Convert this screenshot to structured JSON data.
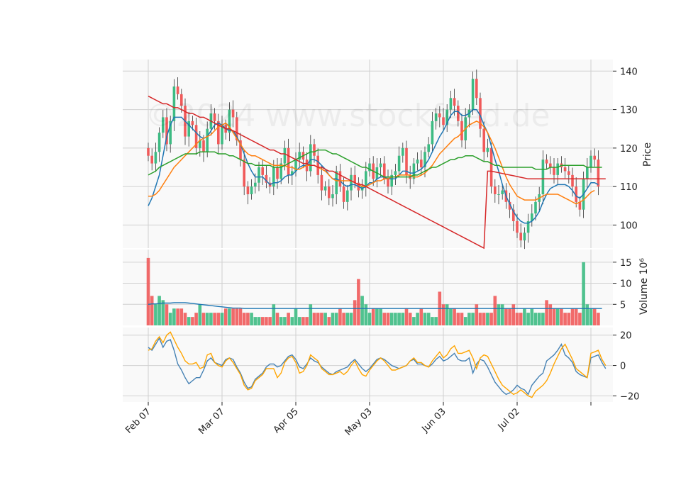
{
  "watermark": "©2024 www.stockfeed.de",
  "colors": {
    "up": "#3dbb83",
    "down": "#f05a5a",
    "ma_fast": "#1f77b4",
    "ma_mid": "#ff7f0e",
    "ma_slow": "#2ca02c",
    "ma_long": "#d62728",
    "volume_ma": "#1f77b4",
    "osc_fast": "#4682b4",
    "osc_slow": "#ffa500",
    "panel_bg": "#f9f9f9",
    "grid": "#d0d0d0"
  },
  "chart_data": [
    {
      "type": "candlestick",
      "ylabel": "Price",
      "ylim": [
        94,
        143
      ],
      "yticks": [
        100,
        110,
        120,
        130,
        140
      ],
      "x_ticks": [
        {
          "index": 0,
          "label": "Feb 07"
        },
        {
          "index": 20,
          "label": "Mar 07"
        },
        {
          "index": 40,
          "label": "Apr 05"
        },
        {
          "index": 60,
          "label": "May 03"
        },
        {
          "index": 80,
          "label": "Jun 03"
        },
        {
          "index": 100,
          "label": "Jul 02"
        },
        {
          "index": 120,
          "label": ""
        }
      ],
      "close": [
        118,
        116,
        119,
        124,
        128,
        121,
        127,
        136,
        134,
        131,
        123,
        127,
        126,
        120,
        122,
        119,
        125,
        129,
        127,
        121,
        126,
        124,
        130,
        128,
        122,
        117,
        110,
        108,
        110,
        111,
        115,
        113,
        111,
        110,
        115,
        112,
        116,
        120,
        113,
        114,
        117,
        119,
        117,
        114,
        121,
        118,
        113,
        109,
        110,
        107,
        108,
        114,
        110,
        106,
        109,
        113,
        111,
        109,
        110,
        114,
        116,
        112,
        115,
        116,
        112,
        110,
        113,
        114,
        118,
        120,
        113,
        112,
        116,
        117,
        115,
        119,
        121,
        127,
        129,
        128,
        126,
        130,
        133,
        131,
        127,
        122,
        128,
        130,
        138,
        133,
        125,
        119,
        120,
        110,
        108,
        108,
        109,
        106,
        104,
        101,
        98,
        96,
        98,
        101,
        103,
        106,
        108,
        117,
        116,
        115,
        113,
        116,
        115,
        114,
        113,
        110,
        106,
        104,
        112,
        115,
        118,
        117,
        110
      ],
      "series": [
        {
          "name": "",
          "values": [
            105,
            107,
            110,
            113,
            118,
            123,
            126,
            128,
            128,
            128,
            127,
            126,
            125,
            124,
            123,
            122.5,
            123,
            124.5,
            126,
            126.5,
            126,
            125,
            124.5,
            124.5,
            123,
            121,
            118.5,
            116,
            114,
            112.5,
            112.5,
            112.5,
            111.5,
            110.5,
            111,
            111,
            111.5,
            112.5,
            113,
            113,
            114,
            115,
            115.5,
            115.5,
            117,
            117,
            116.5,
            115.5,
            114.5,
            113,
            112,
            112,
            111.5,
            110.5,
            110,
            110.5,
            110.5,
            110,
            109.5,
            110,
            111,
            111,
            112,
            112.5,
            112.5,
            112,
            112,
            112,
            113,
            114,
            114,
            113.5,
            113.5,
            114,
            114.5,
            115.5,
            117,
            119,
            121,
            123,
            124.5,
            126.5,
            128.5,
            129.5,
            129.5,
            128.5,
            128.5,
            129,
            130,
            130,
            128.5,
            126,
            124,
            120.5,
            117,
            114,
            110.5,
            107.5,
            105.5,
            103.5,
            102,
            101,
            100.5,
            100.5,
            101,
            102,
            103.5,
            106,
            108,
            109.5,
            110,
            110.5,
            110.5,
            110.5,
            110,
            109,
            107.5,
            107,
            108,
            109.5,
            111,
            111,
            110.5
          ]
        },
        {
          "name": "",
          "values": [
            107.5,
            107.5,
            108,
            109,
            110.5,
            112,
            113.5,
            115,
            116,
            117,
            118,
            119,
            120,
            121,
            122,
            122.5,
            123,
            123.5,
            124.5,
            125.5,
            126,
            126.5,
            125.5,
            124,
            122.5,
            121,
            119.5,
            118.5,
            118,
            118,
            117.5,
            117,
            116.5,
            116,
            115.5,
            115.5,
            115.5,
            115.5,
            115,
            115,
            114.5,
            114.5,
            115,
            115.5,
            115.5,
            115.5,
            115,
            114.5,
            114,
            113,
            112,
            111.5,
            111.5,
            111.5,
            111.5,
            111.5,
            111,
            110.5,
            110,
            110,
            110.5,
            111,
            111.5,
            111.5,
            112,
            112,
            112.5,
            112.5,
            113,
            113,
            113,
            113,
            112.5,
            112.5,
            113,
            113.5,
            114.5,
            115.5,
            117,
            118.5,
            119.5,
            120.5,
            121.5,
            122.5,
            123,
            124,
            125,
            126,
            126.5,
            127,
            126.5,
            125.5,
            124,
            122,
            120,
            117.5,
            115,
            112.5,
            110.5,
            109,
            107.5,
            107,
            106.5,
            106.5,
            106.5,
            106.5,
            107,
            107.5,
            108,
            108,
            108,
            108,
            107.5,
            107,
            106.5,
            106,
            105.5,
            106,
            106.5,
            107.5,
            108.5,
            109
          ]
        },
        {
          "name": "",
          "values": [
            113,
            113.5,
            114,
            115,
            115.5,
            116,
            116.5,
            117,
            117.5,
            118,
            118.5,
            118.5,
            118.5,
            118.5,
            119,
            119,
            119,
            119,
            119,
            118.5,
            118.5,
            118.5,
            118,
            118,
            117.5,
            117,
            116.5,
            116,
            116,
            115.5,
            115.5,
            115.5,
            115.5,
            115.5,
            115,
            115,
            115,
            115.5,
            116,
            116.5,
            117,
            117.5,
            118,
            118.5,
            119,
            119,
            119.5,
            119.5,
            119.5,
            119,
            118.5,
            118.5,
            118,
            117.5,
            117,
            116.5,
            116,
            115.5,
            115,
            115,
            114.5,
            114,
            113.5,
            113,
            112.5,
            112.5,
            112.5,
            112.5,
            112.5,
            112.5,
            112.5,
            112.5,
            113,
            113,
            113.5,
            114,
            114.5,
            115,
            115,
            115.5,
            116,
            116.5,
            117,
            117,
            117.5,
            117.5,
            118,
            118,
            118,
            117.5,
            117,
            116.5,
            116.5,
            116,
            115.5,
            115.5,
            115,
            115,
            115,
            115,
            115,
            115,
            115,
            115,
            115,
            114.5,
            114.5,
            114.5,
            114.5,
            115,
            115,
            115,
            115.5,
            115.5,
            115.5,
            115.5,
            115.5,
            115.5,
            115.5,
            115,
            115,
            115,
            115,
            115
          ]
        },
        {
          "name": "",
          "values": [
            133.5,
            133,
            132.5,
            132,
            131.5,
            131.5,
            131,
            130.5,
            130.5,
            130,
            129.5,
            129,
            129,
            128.5,
            128,
            128,
            127.5,
            127,
            126.5,
            126,
            125.5,
            125,
            125,
            124.5,
            124,
            123.5,
            123,
            122.5,
            122,
            121.5,
            121,
            120.5,
            120,
            119.5,
            119.5,
            119,
            118.5,
            118.5,
            118,
            117.5,
            117,
            116.5,
            116,
            116,
            115.5,
            115.5,
            115,
            115,
            114.5,
            114,
            114,
            113.5,
            113,
            112.5,
            112,
            111.5,
            111,
            110.5,
            110.5,
            110,
            109.5,
            109,
            108.5,
            108,
            107.5,
            107,
            106.5,
            106,
            105.5,
            105,
            104.5,
            104,
            103.5,
            103,
            102.5,
            102,
            101.5,
            101,
            100.5,
            100,
            99.5,
            99,
            98.5,
            98,
            97.5,
            97,
            96.5,
            96,
            95.5,
            95,
            94.5,
            94,
            114,
            114,
            113.8,
            113.6,
            113.4,
            113.2,
            113,
            112.8,
            112.6,
            112.4,
            112.2,
            112,
            112,
            112,
            112,
            112,
            112,
            112,
            112,
            112,
            112,
            112,
            112,
            112,
            112,
            112,
            112,
            112,
            112,
            112,
            112,
            112,
            112
          ]
        }
      ]
    },
    {
      "type": "bar",
      "ylabel": "Volume  10⁶",
      "ylim": [
        0,
        18
      ],
      "yticks": [
        5,
        10,
        15
      ],
      "values": [
        16,
        7,
        5,
        7,
        6,
        5,
        3,
        4,
        4,
        4,
        3,
        2,
        2,
        3,
        5,
        3,
        3,
        3,
        3,
        3,
        3,
        4,
        4,
        4,
        4,
        4,
        3,
        3,
        3,
        2,
        2,
        2,
        2,
        2,
        5,
        3,
        2,
        2,
        3,
        2,
        4,
        2,
        2,
        2,
        5,
        3,
        3,
        3,
        3,
        2,
        3,
        3,
        4,
        3,
        3,
        3,
        6,
        11,
        7,
        5,
        3,
        4,
        4,
        4,
        3,
        3,
        3,
        3,
        3,
        3,
        4,
        3,
        2,
        3,
        4,
        3,
        3,
        2,
        2,
        8,
        5,
        5,
        4,
        4,
        3,
        3,
        2,
        3,
        3,
        5,
        3,
        3,
        3,
        3,
        7,
        5,
        5,
        4,
        4,
        5,
        3,
        3,
        4,
        3,
        4,
        3,
        3,
        3,
        6,
        5,
        4,
        4,
        4,
        3,
        3,
        4,
        4,
        3,
        15,
        5,
        4,
        4,
        3
      ],
      "ma": [
        5,
        5.1,
        5.1,
        5.2,
        5.3,
        5.3,
        5.3,
        5.4,
        5.4,
        5.4,
        5.4,
        5.3,
        5.2,
        5.1,
        5,
        4.9,
        4.8,
        4.7,
        4.6,
        4.5,
        4.4,
        4.3,
        4.2,
        4.1,
        4.1,
        4.1,
        4,
        4,
        4,
        4,
        4,
        4,
        4,
        4,
        4,
        4,
        4,
        4,
        4,
        4,
        4,
        4,
        4,
        4,
        4,
        4,
        4,
        4,
        4,
        4,
        4,
        4,
        4,
        4,
        4,
        4,
        4,
        4,
        4,
        4,
        4,
        4,
        4,
        4,
        4,
        4,
        4,
        4,
        4,
        4,
        4,
        4,
        4,
        4,
        4,
        4,
        4,
        4,
        4,
        4,
        4,
        4,
        4,
        4,
        4,
        4,
        4,
        4,
        4,
        4,
        4,
        4,
        4,
        4,
        4,
        4,
        4,
        4,
        4,
        4,
        4,
        4,
        4,
        4,
        4,
        4,
        4,
        4,
        4,
        4,
        4,
        4,
        4,
        4,
        4,
        4,
        4,
        4,
        4,
        4,
        4,
        4,
        4,
        4
      ]
    },
    {
      "type": "line",
      "ylim": [
        -24,
        25
      ],
      "yticks": [
        -20,
        0,
        20
      ],
      "series": [
        {
          "name": "",
          "values": [
            12,
            10,
            14,
            18,
            12,
            16,
            17,
            10,
            1,
            -3,
            -8,
            -12,
            -10,
            -8,
            -8,
            -3,
            3,
            5,
            2,
            1,
            0,
            4,
            5,
            4,
            -1,
            -5,
            -11,
            -15,
            -14,
            -9,
            -7,
            -5,
            -1,
            1,
            1,
            -1,
            0,
            3,
            6,
            7,
            4,
            -1,
            -2,
            1,
            5,
            3,
            2,
            -1,
            -3,
            -5,
            -6,
            -4,
            -3,
            -2,
            -1,
            2,
            4,
            1,
            -2,
            -4,
            -2,
            1,
            4,
            5,
            4,
            2,
            0,
            -1,
            -2,
            -1,
            0,
            3,
            4,
            1,
            1,
            0,
            -1,
            1,
            4,
            6,
            3,
            4,
            6,
            8,
            4,
            3,
            3,
            5,
            -5,
            1,
            4,
            3,
            -1,
            -6,
            -11,
            -14,
            -17,
            -19,
            -18,
            -16,
            -13,
            -15,
            -16,
            -19,
            -13,
            -10,
            -7,
            -5,
            3,
            5,
            7,
            10,
            14,
            7,
            5,
            2,
            -4,
            -6,
            -7,
            -8,
            5,
            6,
            7,
            2,
            -2
          ]
        },
        {
          "name": "",
          "values": [
            10,
            11,
            16,
            19,
            15,
            20,
            22,
            17,
            12,
            8,
            3,
            1,
            1,
            2,
            -2,
            -1,
            7,
            8,
            2,
            0,
            -1,
            3,
            5,
            2,
            -2,
            -6,
            -13,
            -16,
            -15,
            -10,
            -8,
            -6,
            -2,
            -2,
            -2,
            -8,
            -5,
            2,
            5,
            6,
            2,
            -5,
            -4,
            0,
            7,
            5,
            3,
            -2,
            -4,
            -6,
            -6,
            -5,
            -4,
            -6,
            -4,
            0,
            3,
            -2,
            -6,
            -7,
            -3,
            0,
            3,
            5,
            3,
            0,
            -3,
            -3,
            -2,
            -1,
            0,
            3,
            5,
            2,
            2,
            0,
            -1,
            3,
            6,
            9,
            5,
            7,
            11,
            13,
            8,
            8,
            9,
            10,
            5,
            -2,
            5,
            7,
            6,
            1,
            -4,
            -9,
            -13,
            -15,
            -17,
            -19,
            -18,
            -16,
            -18,
            -20,
            -21,
            -17,
            -15,
            -13,
            -10,
            -5,
            1,
            6,
            11,
            14,
            9,
            4,
            -2,
            -4,
            -6,
            -8,
            8,
            9,
            10,
            4,
            0
          ]
        }
      ]
    }
  ]
}
